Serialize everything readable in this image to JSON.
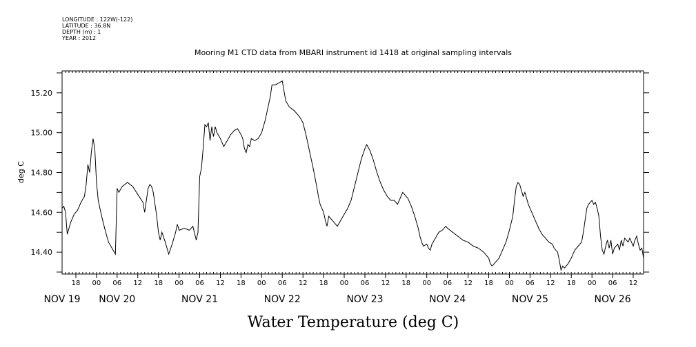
{
  "metadata": {
    "lines": [
      "LONGITUDE : 122W(-122)",
      "LATITUDE : 36.8N",
      "DEPTH (m) : 1",
      "YEAR : 2012"
    ]
  },
  "chart_data": {
    "type": "line",
    "title": "Mooring M1 CTD data from MBARI instrument id 1418 at original sampling intervals",
    "xlabel": "Water Temperature (deg C)",
    "ylabel": "deg C",
    "xlim": [
      "2012-11-19T14:00",
      "2012-11-26T15:00"
    ],
    "ylim": [
      14.29,
      15.31
    ],
    "yticks": [
      14.4,
      14.6,
      14.8,
      15.0,
      15.2
    ],
    "ytick_labels": [
      "14.40",
      "14.60",
      "14.80",
      "15.00",
      "15.20"
    ],
    "hour_ticks": [
      {
        "t": "2012-11-19T18:00",
        "label": "18"
      },
      {
        "t": "2012-11-20T00:00",
        "label": "00"
      },
      {
        "t": "2012-11-20T06:00",
        "label": "06"
      },
      {
        "t": "2012-11-20T12:00",
        "label": "12"
      },
      {
        "t": "2012-11-20T18:00",
        "label": "18"
      },
      {
        "t": "2012-11-21T00:00",
        "label": "00"
      },
      {
        "t": "2012-11-21T06:00",
        "label": "06"
      },
      {
        "t": "2012-11-21T12:00",
        "label": "12"
      },
      {
        "t": "2012-11-21T18:00",
        "label": "18"
      },
      {
        "t": "2012-11-22T00:00",
        "label": "00"
      },
      {
        "t": "2012-11-22T06:00",
        "label": "06"
      },
      {
        "t": "2012-11-22T12:00",
        "label": "12"
      },
      {
        "t": "2012-11-22T18:00",
        "label": "18"
      },
      {
        "t": "2012-11-23T00:00",
        "label": "00"
      },
      {
        "t": "2012-11-23T06:00",
        "label": "06"
      },
      {
        "t": "2012-11-23T12:00",
        "label": "12"
      },
      {
        "t": "2012-11-23T18:00",
        "label": "18"
      },
      {
        "t": "2012-11-24T00:00",
        "label": "00"
      },
      {
        "t": "2012-11-24T06:00",
        "label": "06"
      },
      {
        "t": "2012-11-24T12:00",
        "label": "12"
      },
      {
        "t": "2012-11-24T18:00",
        "label": "18"
      },
      {
        "t": "2012-11-25T00:00",
        "label": "00"
      },
      {
        "t": "2012-11-25T06:00",
        "label": "06"
      },
      {
        "t": "2012-11-25T12:00",
        "label": "12"
      },
      {
        "t": "2012-11-25T18:00",
        "label": "18"
      },
      {
        "t": "2012-11-26T00:00",
        "label": "00"
      },
      {
        "t": "2012-11-26T06:00",
        "label": "06"
      },
      {
        "t": "2012-11-26T12:00",
        "label": "12"
      }
    ],
    "day_labels": [
      {
        "t": "2012-11-19T14:00",
        "label": "NOV 19"
      },
      {
        "t": "2012-11-20T06:00",
        "label": "NOV 20"
      },
      {
        "t": "2012-11-21T06:00",
        "label": "NOV 21"
      },
      {
        "t": "2012-11-22T06:00",
        "label": "NOV 22"
      },
      {
        "t": "2012-11-23T06:00",
        "label": "NOV 23"
      },
      {
        "t": "2012-11-24T06:00",
        "label": "NOV 24"
      },
      {
        "t": "2012-11-25T06:00",
        "label": "NOV 25"
      },
      {
        "t": "2012-11-26T06:00",
        "label": "NOV 26"
      }
    ],
    "grid": false,
    "series": [
      {
        "line_color": "#000000",
        "points": [
          [
            "2012-11-19T14:00",
            14.62
          ],
          [
            "2012-11-19T14:30",
            14.63
          ],
          [
            "2012-11-19T15:00",
            14.6
          ],
          [
            "2012-11-19T15:30",
            14.49
          ],
          [
            "2012-11-19T16:30",
            14.55
          ],
          [
            "2012-11-19T17:30",
            14.59
          ],
          [
            "2012-11-19T18:30",
            14.61
          ],
          [
            "2012-11-19T19:30",
            14.65
          ],
          [
            "2012-11-19T20:30",
            14.68
          ],
          [
            "2012-11-19T21:00",
            14.74
          ],
          [
            "2012-11-19T21:30",
            14.84
          ],
          [
            "2012-11-19T22:00",
            14.8
          ],
          [
            "2012-11-19T22:30",
            14.9
          ],
          [
            "2012-11-19T23:00",
            14.97
          ],
          [
            "2012-11-19T23:30",
            14.92
          ],
          [
            "2012-11-20T00:00",
            14.75
          ],
          [
            "2012-11-20T00:30",
            14.66
          ],
          [
            "2012-11-20T01:30",
            14.58
          ],
          [
            "2012-11-20T02:30",
            14.51
          ],
          [
            "2012-11-20T03:30",
            14.45
          ],
          [
            "2012-11-20T04:30",
            14.42
          ],
          [
            "2012-11-20T05:30",
            14.39
          ],
          [
            "2012-11-20T06:00",
            14.72
          ],
          [
            "2012-11-20T06:30",
            14.7
          ],
          [
            "2012-11-20T07:30",
            14.73
          ],
          [
            "2012-11-20T09:00",
            14.75
          ],
          [
            "2012-11-20T10:30",
            14.73
          ],
          [
            "2012-11-20T12:00",
            14.69
          ],
          [
            "2012-11-20T13:30",
            14.65
          ],
          [
            "2012-11-20T14:00",
            14.6
          ],
          [
            "2012-11-20T14:30",
            14.66
          ],
          [
            "2012-11-20T15:00",
            14.72
          ],
          [
            "2012-11-20T15:30",
            14.74
          ],
          [
            "2012-11-20T16:00",
            14.73
          ],
          [
            "2012-11-20T16:30",
            14.7
          ],
          [
            "2012-11-20T17:00",
            14.64
          ],
          [
            "2012-11-20T17:30",
            14.58
          ],
          [
            "2012-11-20T18:00",
            14.5
          ],
          [
            "2012-11-20T18:30",
            14.46
          ],
          [
            "2012-11-20T19:00",
            14.5
          ],
          [
            "2012-11-20T20:00",
            14.45
          ],
          [
            "2012-11-20T21:00",
            14.39
          ],
          [
            "2012-11-20T22:00",
            14.44
          ],
          [
            "2012-11-20T23:00",
            14.5
          ],
          [
            "2012-11-20T23:30",
            14.54
          ],
          [
            "2012-11-21T00:00",
            14.51
          ],
          [
            "2012-11-21T01:30",
            14.52
          ],
          [
            "2012-11-21T03:00",
            14.51
          ],
          [
            "2012-11-21T04:00",
            14.53
          ],
          [
            "2012-11-21T05:00",
            14.46
          ],
          [
            "2012-11-21T05:30",
            14.5
          ],
          [
            "2012-11-21T06:00",
            14.78
          ],
          [
            "2012-11-21T06:30",
            14.82
          ],
          [
            "2012-11-21T07:00",
            14.92
          ],
          [
            "2012-11-21T07:30",
            15.04
          ],
          [
            "2012-11-21T08:00",
            15.03
          ],
          [
            "2012-11-21T08:30",
            15.05
          ],
          [
            "2012-11-21T09:00",
            14.96
          ],
          [
            "2012-11-21T09:30",
            15.03
          ],
          [
            "2012-11-21T10:00",
            14.98
          ],
          [
            "2012-11-21T10:30",
            15.03
          ],
          [
            "2012-11-21T11:00",
            15.0
          ],
          [
            "2012-11-21T12:00",
            14.97
          ],
          [
            "2012-11-21T13:00",
            14.93
          ],
          [
            "2012-11-21T14:00",
            14.96
          ],
          [
            "2012-11-21T15:00",
            14.99
          ],
          [
            "2012-11-21T16:00",
            15.01
          ],
          [
            "2012-11-21T17:00",
            15.02
          ],
          [
            "2012-11-21T18:00",
            14.99
          ],
          [
            "2012-11-21T18:30",
            14.97
          ],
          [
            "2012-11-21T19:00",
            14.92
          ],
          [
            "2012-11-21T19:30",
            14.9
          ],
          [
            "2012-11-21T20:00",
            14.94
          ],
          [
            "2012-11-21T20:30",
            14.93
          ],
          [
            "2012-11-21T21:00",
            14.97
          ],
          [
            "2012-11-21T22:00",
            14.96
          ],
          [
            "2012-11-21T23:00",
            14.97
          ],
          [
            "2012-11-22T00:00",
            15.0
          ],
          [
            "2012-11-22T01:00",
            15.06
          ],
          [
            "2012-11-22T02:00",
            15.14
          ],
          [
            "2012-11-22T02:30",
            15.18
          ],
          [
            "2012-11-22T03:00",
            15.24
          ],
          [
            "2012-11-22T04:00",
            15.24
          ],
          [
            "2012-11-22T05:00",
            15.25
          ],
          [
            "2012-11-22T06:00",
            15.26
          ],
          [
            "2012-11-22T07:00",
            15.16
          ],
          [
            "2012-11-22T08:00",
            15.13
          ],
          [
            "2012-11-22T09:30",
            15.11
          ],
          [
            "2012-11-22T11:00",
            15.08
          ],
          [
            "2012-11-22T12:00",
            15.05
          ],
          [
            "2012-11-22T13:00",
            14.98
          ],
          [
            "2012-11-22T14:00",
            14.9
          ],
          [
            "2012-11-22T15:00",
            14.82
          ],
          [
            "2012-11-22T16:00",
            14.73
          ],
          [
            "2012-11-22T16:30",
            14.68
          ],
          [
            "2012-11-22T17:00",
            14.64
          ],
          [
            "2012-11-22T18:00",
            14.6
          ],
          [
            "2012-11-22T18:30",
            14.56
          ],
          [
            "2012-11-22T19:00",
            14.53
          ],
          [
            "2012-11-22T19:30",
            14.58
          ],
          [
            "2012-11-22T20:00",
            14.57
          ],
          [
            "2012-11-22T21:00",
            14.55
          ],
          [
            "2012-11-22T22:00",
            14.53
          ],
          [
            "2012-11-22T23:00",
            14.56
          ],
          [
            "2012-11-23T00:00",
            14.59
          ],
          [
            "2012-11-23T01:00",
            14.62
          ],
          [
            "2012-11-23T02:00",
            14.66
          ],
          [
            "2012-11-23T03:00",
            14.73
          ],
          [
            "2012-11-23T04:00",
            14.8
          ],
          [
            "2012-11-23T05:00",
            14.87
          ],
          [
            "2012-11-23T06:00",
            14.92
          ],
          [
            "2012-11-23T06:30",
            14.94
          ],
          [
            "2012-11-23T07:30",
            14.91
          ],
          [
            "2012-11-23T08:30",
            14.86
          ],
          [
            "2012-11-23T09:30",
            14.8
          ],
          [
            "2012-11-23T10:30",
            14.75
          ],
          [
            "2012-11-23T11:30",
            14.71
          ],
          [
            "2012-11-23T12:30",
            14.68
          ],
          [
            "2012-11-23T13:30",
            14.66
          ],
          [
            "2012-11-23T14:30",
            14.66
          ],
          [
            "2012-11-23T15:30",
            14.64
          ],
          [
            "2012-11-23T16:00",
            14.66
          ],
          [
            "2012-11-23T17:00",
            14.7
          ],
          [
            "2012-11-23T17:30",
            14.69
          ],
          [
            "2012-11-23T18:30",
            14.67
          ],
          [
            "2012-11-23T19:30",
            14.63
          ],
          [
            "2012-11-23T20:30",
            14.58
          ],
          [
            "2012-11-23T21:30",
            14.52
          ],
          [
            "2012-11-23T22:00",
            14.48
          ],
          [
            "2012-11-23T22:30",
            14.45
          ],
          [
            "2012-11-23T23:00",
            14.43
          ],
          [
            "2012-11-24T00:00",
            14.44
          ],
          [
            "2012-11-24T00:30",
            14.42
          ],
          [
            "2012-11-24T01:00",
            14.41
          ],
          [
            "2012-11-24T01:30",
            14.44
          ],
          [
            "2012-11-24T02:30",
            14.47
          ],
          [
            "2012-11-24T03:30",
            14.5
          ],
          [
            "2012-11-24T04:30",
            14.51
          ],
          [
            "2012-11-24T05:30",
            14.53
          ],
          [
            "2012-11-24T06:00",
            14.52
          ],
          [
            "2012-11-24T07:30",
            14.5
          ],
          [
            "2012-11-24T09:00",
            14.48
          ],
          [
            "2012-11-24T10:30",
            14.46
          ],
          [
            "2012-11-24T12:00",
            14.45
          ],
          [
            "2012-11-24T13:30",
            14.43
          ],
          [
            "2012-11-24T15:00",
            14.42
          ],
          [
            "2012-11-24T16:30",
            14.4
          ],
          [
            "2012-11-24T18:00",
            14.37
          ],
          [
            "2012-11-24T18:30",
            14.34
          ],
          [
            "2012-11-24T19:00",
            14.33
          ],
          [
            "2012-11-24T20:00",
            14.35
          ],
          [
            "2012-11-24T21:00",
            14.37
          ],
          [
            "2012-11-24T22:00",
            14.41
          ],
          [
            "2012-11-24T23:00",
            14.45
          ],
          [
            "2012-11-25T00:00",
            14.51
          ],
          [
            "2012-11-25T01:00",
            14.58
          ],
          [
            "2012-11-25T01:30",
            14.66
          ],
          [
            "2012-11-25T02:00",
            14.73
          ],
          [
            "2012-11-25T02:30",
            14.75
          ],
          [
            "2012-11-25T03:00",
            14.74
          ],
          [
            "2012-11-25T03:30",
            14.71
          ],
          [
            "2012-11-25T04:00",
            14.68
          ],
          [
            "2012-11-25T04:30",
            14.7
          ],
          [
            "2012-11-25T05:30",
            14.64
          ],
          [
            "2012-11-25T06:30",
            14.6
          ],
          [
            "2012-11-25T07:30",
            14.56
          ],
          [
            "2012-11-25T08:30",
            14.52
          ],
          [
            "2012-11-25T09:30",
            14.49
          ],
          [
            "2012-11-25T10:30",
            14.47
          ],
          [
            "2012-11-25T11:30",
            14.45
          ],
          [
            "2012-11-25T12:30",
            14.44
          ],
          [
            "2012-11-25T13:00",
            14.42
          ],
          [
            "2012-11-25T14:00",
            14.4
          ],
          [
            "2012-11-25T14:30",
            14.36
          ],
          [
            "2012-11-25T15:00",
            14.31
          ],
          [
            "2012-11-25T15:30",
            14.33
          ],
          [
            "2012-11-25T16:00",
            14.32
          ],
          [
            "2012-11-25T17:00",
            14.34
          ],
          [
            "2012-11-25T18:00",
            14.37
          ],
          [
            "2012-11-25T19:00",
            14.41
          ],
          [
            "2012-11-25T20:00",
            14.43
          ],
          [
            "2012-11-25T21:00",
            14.45
          ],
          [
            "2012-11-25T21:30",
            14.5
          ],
          [
            "2012-11-25T22:00",
            14.56
          ],
          [
            "2012-11-25T22:30",
            14.62
          ],
          [
            "2012-11-25T23:00",
            14.64
          ],
          [
            "2012-11-26T00:00",
            14.66
          ],
          [
            "2012-11-26T00:30",
            14.64
          ],
          [
            "2012-11-26T01:00",
            14.65
          ],
          [
            "2012-11-26T01:30",
            14.62
          ],
          [
            "2012-11-26T02:00",
            14.58
          ],
          [
            "2012-11-26T02:30",
            14.48
          ],
          [
            "2012-11-26T03:00",
            14.41
          ],
          [
            "2012-11-26T03:30",
            14.39
          ],
          [
            "2012-11-26T04:00",
            14.43
          ],
          [
            "2012-11-26T04:30",
            14.46
          ],
          [
            "2012-11-26T05:00",
            14.42
          ],
          [
            "2012-11-26T05:30",
            14.46
          ],
          [
            "2012-11-26T06:00",
            14.39
          ],
          [
            "2012-11-26T06:30",
            14.42
          ],
          [
            "2012-11-26T07:00",
            14.43
          ],
          [
            "2012-11-26T07:30",
            14.44
          ],
          [
            "2012-11-26T08:00",
            14.41
          ],
          [
            "2012-11-26T08:30",
            14.46
          ],
          [
            "2012-11-26T09:00",
            14.43
          ],
          [
            "2012-11-26T09:30",
            14.47
          ],
          [
            "2012-11-26T10:00",
            14.46
          ],
          [
            "2012-11-26T10:30",
            14.45
          ],
          [
            "2012-11-26T11:00",
            14.47
          ],
          [
            "2012-11-26T11:30",
            14.45
          ],
          [
            "2012-11-26T12:00",
            14.43
          ],
          [
            "2012-11-26T12:30",
            14.46
          ],
          [
            "2012-11-26T13:00",
            14.48
          ],
          [
            "2012-11-26T13:30",
            14.44
          ],
          [
            "2012-11-26T14:00",
            14.41
          ],
          [
            "2012-11-26T14:30",
            14.42
          ],
          [
            "2012-11-26T15:00",
            14.37
          ]
        ]
      }
    ]
  }
}
